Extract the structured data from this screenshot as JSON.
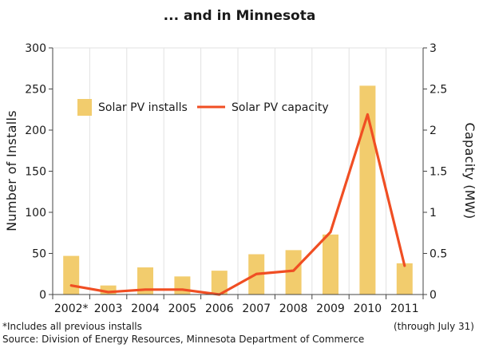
{
  "chart_data": {
    "type": "bar+line",
    "title": "... and in Minnesota",
    "categories": [
      "2002*",
      "2003",
      "2004",
      "2005",
      "2006",
      "2007",
      "2008",
      "2009",
      "2010",
      "2011"
    ],
    "series": [
      {
        "name": "Solar PV installs",
        "type": "bar",
        "axis": "left",
        "values": [
          47,
          11,
          33,
          22,
          29,
          49,
          54,
          73,
          254,
          38
        ]
      },
      {
        "name": "Solar PV capacity",
        "type": "line",
        "axis": "right",
        "values": [
          0.11,
          0.03,
          0.06,
          0.06,
          0.0,
          0.25,
          0.29,
          0.76,
          2.19,
          0.35
        ]
      }
    ],
    "ylabel": "Number of Installs",
    "ylim": [
      0,
      300
    ],
    "yticks": [
      0,
      50,
      100,
      150,
      200,
      250,
      300
    ],
    "y2label": "Capacity (MW)",
    "y2lim": [
      0,
      3
    ],
    "y2ticks": [
      "0",
      "0.5",
      "1",
      "1.5",
      "2",
      "2.5",
      "3"
    ],
    "grid": "vertical category lines",
    "legend_position": "top-left",
    "colors": {
      "bar": "#F2CC6D",
      "line": "#F04E23",
      "grid": "#e2e2e2",
      "axis": "#444444"
    }
  },
  "footnotes": {
    "includes": "*Includes all previous installs",
    "through": "(through July 31)",
    "source": "Source: Division of Energy Resources, Minnesota Department of Commerce"
  }
}
